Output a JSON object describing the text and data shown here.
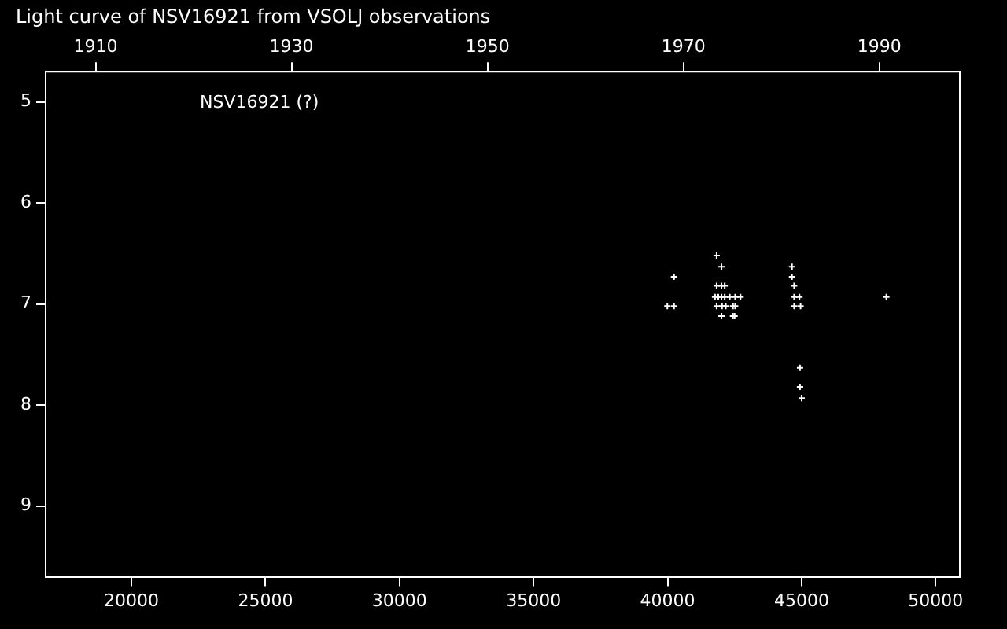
{
  "chart_data": {
    "type": "scatter",
    "title": "Light curve of NSV16921 from VSOLJ observations",
    "annotations": [
      "NSV16921 (?)"
    ],
    "series": [
      {
        "color": "#ffffff",
        "x": [
          40240,
          39990,
          40240,
          41830,
          42010,
          41830,
          42010,
          42130,
          41770,
          41890,
          42010,
          42130,
          42320,
          42520,
          42720,
          41830,
          42030,
          42170,
          42440,
          42520,
          42010,
          42440,
          42500,
          44640,
          44640,
          44720,
          44720,
          44920,
          44720,
          44960,
          44940,
          44940,
          45000,
          48160
        ],
        "values": [
          6.73,
          7.02,
          7.02,
          6.52,
          6.63,
          6.82,
          6.82,
          6.82,
          6.93,
          6.93,
          6.93,
          6.93,
          6.93,
          6.93,
          6.93,
          7.02,
          7.02,
          7.02,
          7.02,
          7.02,
          7.12,
          7.12,
          7.12,
          6.63,
          6.73,
          6.82,
          6.93,
          6.93,
          7.02,
          7.02,
          7.63,
          7.82,
          7.93,
          6.93
        ]
      }
    ],
    "xlim": [
      16800,
      50900
    ],
    "xticks": [
      20000,
      25000,
      30000,
      35000,
      40000,
      45000,
      50000
    ],
    "x2lim": [
      1904.9,
      1998.2
    ],
    "x2ticks": [
      1910,
      1930,
      1950,
      1970,
      1990
    ],
    "ylim": [
      9.7,
      4.7
    ],
    "yticks": [
      5,
      6,
      7,
      8,
      9
    ],
    "marker": "cross",
    "grid": false,
    "legend": false
  }
}
